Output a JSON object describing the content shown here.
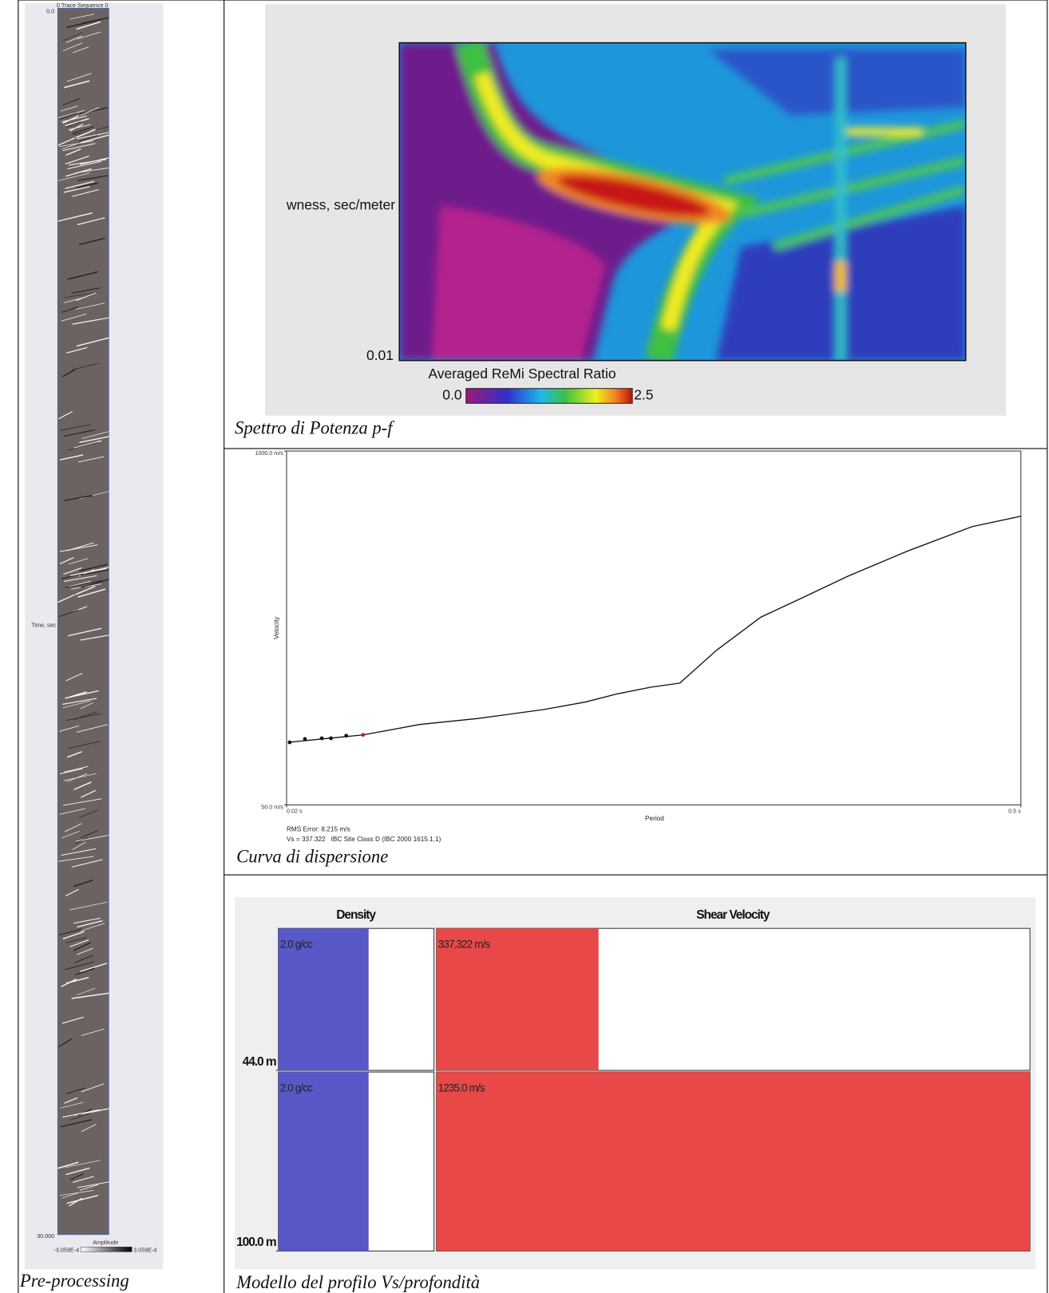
{
  "pre_processing": {
    "trace_label": "0 Trace Sequence 0",
    "time_start": "0.0",
    "time_label": "Time, sec",
    "time_end": "30.000",
    "amplitude_label": "Amplitude",
    "amplitude_min": "-3.059E-4",
    "amplitude_max": "3.059E-4",
    "caption": "Pre-processing"
  },
  "spectrum": {
    "y_label": "wness, sec/meter",
    "y_tick": "0.01",
    "colorbar_title": "Averaged ReMi Spectral Ratio",
    "colorbar_min": "0.0",
    "colorbar_max": "2.5",
    "caption": "Spettro di Potenza p-f"
  },
  "dispersion": {
    "y_label": "Velocity",
    "x_label": "Period",
    "ylim": [
      50,
      1000
    ],
    "yticks": [
      {
        "value": 1000,
        "label": "1000.0 m/s"
      },
      {
        "value": 50,
        "label": "50.0 m/s"
      }
    ],
    "xlim": [
      0.02,
      0.5
    ],
    "xticks": [
      {
        "value": 0.02,
        "label": "0.02 s"
      },
      {
        "value": 0.5,
        "label": "0.5 s"
      }
    ],
    "curve": {
      "x": [
        0.021,
        0.048,
        0.07,
        0.107,
        0.145,
        0.188,
        0.215,
        0.236,
        0.258,
        0.277,
        0.301,
        0.33,
        0.355,
        0.387,
        0.425,
        0.468,
        0.5
      ],
      "y": [
        218,
        229,
        238,
        266,
        282,
        306,
        326,
        348,
        366,
        377,
        465,
        554,
        602,
        664,
        730,
        797,
        825
      ]
    },
    "picks": {
      "x": [
        0.022,
        0.032,
        0.043,
        0.049,
        0.059,
        0.07
      ],
      "y": [
        218,
        227,
        229,
        229,
        236,
        238
      ]
    },
    "rms_error": "RMS Error: 8.215 m/s",
    "site_class": "Vs = 337.322   IBC Site Class D (IBC 2000 1615.1.1)",
    "caption": "Curva di dispersione"
  },
  "profile": {
    "density_header": "Density",
    "velocity_header": "Shear Velocity",
    "layers": [
      {
        "density": 2.0,
        "density_label": "2.0 g/cc",
        "velocity": 337.322,
        "velocity_label": "337.322 m/s",
        "depth": 44,
        "depth_label": "44.0 m"
      },
      {
        "density": 2.0,
        "density_label": "2.0 g/cc",
        "velocity": 1235.0,
        "velocity_label": "1235.0 m/s",
        "depth": 100,
        "depth_label": "100.0 m"
      }
    ],
    "caption": "Modello del profilo Vs/profondità"
  }
}
